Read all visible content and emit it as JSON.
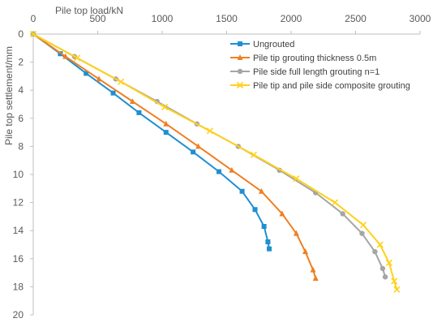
{
  "chart_data": {
    "type": "line",
    "title": "",
    "xlabel": "Pile top load/kN",
    "ylabel": "Pile top settlement/mm",
    "x_axis_position": "top",
    "y_axis_inverted": true,
    "xlim": [
      0,
      3000
    ],
    "ylim": [
      0,
      20
    ],
    "x_ticks": [
      "0",
      "500",
      "1000",
      "1500",
      "2000",
      "2500",
      "3000"
    ],
    "y_ticks": [
      "0",
      "2",
      "4",
      "6",
      "8",
      "10",
      "12",
      "14",
      "16",
      "18",
      "20"
    ],
    "grid": false,
    "legend_position": "top-right",
    "series": [
      {
        "name": "Ungrouted",
        "color": "#1f8fd1",
        "marker": "square",
        "points": [
          [
            0,
            0
          ],
          [
            210,
            1.4
          ],
          [
            410,
            2.8
          ],
          [
            620,
            4.2
          ],
          [
            820,
            5.6
          ],
          [
            1030,
            7.0
          ],
          [
            1240,
            8.4
          ],
          [
            1440,
            9.8
          ],
          [
            1620,
            11.2
          ],
          [
            1720,
            12.5
          ],
          [
            1790,
            13.7
          ],
          [
            1820,
            14.8
          ],
          [
            1830,
            15.3
          ]
        ]
      },
      {
        "name": "Pile tip grouting thickness 0.5m",
        "color": "#f07f22",
        "marker": "triangle",
        "points": [
          [
            0,
            0
          ],
          [
            250,
            1.6
          ],
          [
            510,
            3.2
          ],
          [
            770,
            4.8
          ],
          [
            1030,
            6.4
          ],
          [
            1280,
            8.0
          ],
          [
            1540,
            9.7
          ],
          [
            1770,
            11.2
          ],
          [
            1930,
            12.8
          ],
          [
            2040,
            14.2
          ],
          [
            2110,
            15.5
          ],
          [
            2170,
            16.8
          ],
          [
            2190,
            17.4
          ]
        ]
      },
      {
        "name": "Pile side full length grouting n=1",
        "color": "#a5a5a5",
        "marker": "circle",
        "points": [
          [
            0,
            0
          ],
          [
            320,
            1.6
          ],
          [
            640,
            3.2
          ],
          [
            960,
            4.8
          ],
          [
            1270,
            6.4
          ],
          [
            1590,
            8.0
          ],
          [
            1910,
            9.7
          ],
          [
            2190,
            11.3
          ],
          [
            2400,
            12.8
          ],
          [
            2550,
            14.2
          ],
          [
            2650,
            15.5
          ],
          [
            2710,
            16.7
          ],
          [
            2730,
            17.3
          ]
        ]
      },
      {
        "name": "Pile tip and pile side composite grouting",
        "color": "#ffd11a",
        "marker": "x",
        "points": [
          [
            0,
            0
          ],
          [
            340,
            1.7
          ],
          [
            680,
            3.4
          ],
          [
            1020,
            5.2
          ],
          [
            1370,
            6.9
          ],
          [
            1710,
            8.6
          ],
          [
            2040,
            10.3
          ],
          [
            2340,
            12.0
          ],
          [
            2560,
            13.6
          ],
          [
            2690,
            15.0
          ],
          [
            2760,
            16.3
          ],
          [
            2800,
            17.6
          ],
          [
            2820,
            18.2
          ]
        ]
      }
    ]
  }
}
